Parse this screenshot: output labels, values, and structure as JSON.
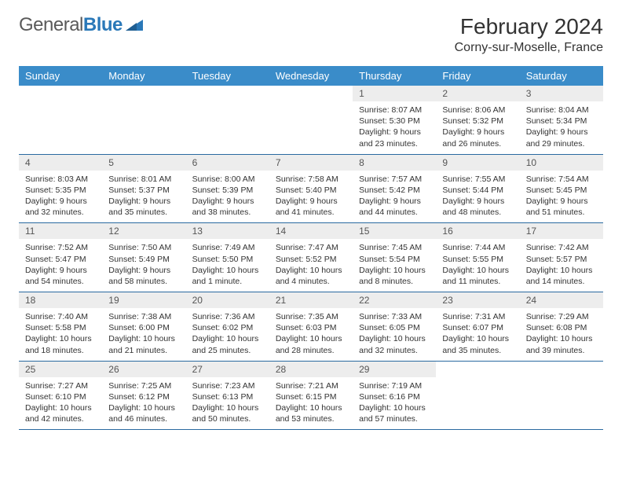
{
  "brand": {
    "part1": "General",
    "part2": "Blue"
  },
  "title": "February 2024",
  "location": "Corny-sur-Moselle, France",
  "colors": {
    "header_bg": "#3a8cc9",
    "header_text": "#ffffff",
    "daynum_bg": "#ededed",
    "row_border": "#2a6aa0",
    "logo_gray": "#5a5a5a",
    "logo_blue": "#2a78b8"
  },
  "weekdays": [
    "Sunday",
    "Monday",
    "Tuesday",
    "Wednesday",
    "Thursday",
    "Friday",
    "Saturday"
  ],
  "weeks": [
    [
      null,
      null,
      null,
      null,
      {
        "n": "1",
        "sr": "Sunrise: 8:07 AM",
        "ss": "Sunset: 5:30 PM",
        "d1": "Daylight: 9 hours",
        "d2": "and 23 minutes."
      },
      {
        "n": "2",
        "sr": "Sunrise: 8:06 AM",
        "ss": "Sunset: 5:32 PM",
        "d1": "Daylight: 9 hours",
        "d2": "and 26 minutes."
      },
      {
        "n": "3",
        "sr": "Sunrise: 8:04 AM",
        "ss": "Sunset: 5:34 PM",
        "d1": "Daylight: 9 hours",
        "d2": "and 29 minutes."
      }
    ],
    [
      {
        "n": "4",
        "sr": "Sunrise: 8:03 AM",
        "ss": "Sunset: 5:35 PM",
        "d1": "Daylight: 9 hours",
        "d2": "and 32 minutes."
      },
      {
        "n": "5",
        "sr": "Sunrise: 8:01 AM",
        "ss": "Sunset: 5:37 PM",
        "d1": "Daylight: 9 hours",
        "d2": "and 35 minutes."
      },
      {
        "n": "6",
        "sr": "Sunrise: 8:00 AM",
        "ss": "Sunset: 5:39 PM",
        "d1": "Daylight: 9 hours",
        "d2": "and 38 minutes."
      },
      {
        "n": "7",
        "sr": "Sunrise: 7:58 AM",
        "ss": "Sunset: 5:40 PM",
        "d1": "Daylight: 9 hours",
        "d2": "and 41 minutes."
      },
      {
        "n": "8",
        "sr": "Sunrise: 7:57 AM",
        "ss": "Sunset: 5:42 PM",
        "d1": "Daylight: 9 hours",
        "d2": "and 44 minutes."
      },
      {
        "n": "9",
        "sr": "Sunrise: 7:55 AM",
        "ss": "Sunset: 5:44 PM",
        "d1": "Daylight: 9 hours",
        "d2": "and 48 minutes."
      },
      {
        "n": "10",
        "sr": "Sunrise: 7:54 AM",
        "ss": "Sunset: 5:45 PM",
        "d1": "Daylight: 9 hours",
        "d2": "and 51 minutes."
      }
    ],
    [
      {
        "n": "11",
        "sr": "Sunrise: 7:52 AM",
        "ss": "Sunset: 5:47 PM",
        "d1": "Daylight: 9 hours",
        "d2": "and 54 minutes."
      },
      {
        "n": "12",
        "sr": "Sunrise: 7:50 AM",
        "ss": "Sunset: 5:49 PM",
        "d1": "Daylight: 9 hours",
        "d2": "and 58 minutes."
      },
      {
        "n": "13",
        "sr": "Sunrise: 7:49 AM",
        "ss": "Sunset: 5:50 PM",
        "d1": "Daylight: 10 hours",
        "d2": "and 1 minute."
      },
      {
        "n": "14",
        "sr": "Sunrise: 7:47 AM",
        "ss": "Sunset: 5:52 PM",
        "d1": "Daylight: 10 hours",
        "d2": "and 4 minutes."
      },
      {
        "n": "15",
        "sr": "Sunrise: 7:45 AM",
        "ss": "Sunset: 5:54 PM",
        "d1": "Daylight: 10 hours",
        "d2": "and 8 minutes."
      },
      {
        "n": "16",
        "sr": "Sunrise: 7:44 AM",
        "ss": "Sunset: 5:55 PM",
        "d1": "Daylight: 10 hours",
        "d2": "and 11 minutes."
      },
      {
        "n": "17",
        "sr": "Sunrise: 7:42 AM",
        "ss": "Sunset: 5:57 PM",
        "d1": "Daylight: 10 hours",
        "d2": "and 14 minutes."
      }
    ],
    [
      {
        "n": "18",
        "sr": "Sunrise: 7:40 AM",
        "ss": "Sunset: 5:58 PM",
        "d1": "Daylight: 10 hours",
        "d2": "and 18 minutes."
      },
      {
        "n": "19",
        "sr": "Sunrise: 7:38 AM",
        "ss": "Sunset: 6:00 PM",
        "d1": "Daylight: 10 hours",
        "d2": "and 21 minutes."
      },
      {
        "n": "20",
        "sr": "Sunrise: 7:36 AM",
        "ss": "Sunset: 6:02 PM",
        "d1": "Daylight: 10 hours",
        "d2": "and 25 minutes."
      },
      {
        "n": "21",
        "sr": "Sunrise: 7:35 AM",
        "ss": "Sunset: 6:03 PM",
        "d1": "Daylight: 10 hours",
        "d2": "and 28 minutes."
      },
      {
        "n": "22",
        "sr": "Sunrise: 7:33 AM",
        "ss": "Sunset: 6:05 PM",
        "d1": "Daylight: 10 hours",
        "d2": "and 32 minutes."
      },
      {
        "n": "23",
        "sr": "Sunrise: 7:31 AM",
        "ss": "Sunset: 6:07 PM",
        "d1": "Daylight: 10 hours",
        "d2": "and 35 minutes."
      },
      {
        "n": "24",
        "sr": "Sunrise: 7:29 AM",
        "ss": "Sunset: 6:08 PM",
        "d1": "Daylight: 10 hours",
        "d2": "and 39 minutes."
      }
    ],
    [
      {
        "n": "25",
        "sr": "Sunrise: 7:27 AM",
        "ss": "Sunset: 6:10 PM",
        "d1": "Daylight: 10 hours",
        "d2": "and 42 minutes."
      },
      {
        "n": "26",
        "sr": "Sunrise: 7:25 AM",
        "ss": "Sunset: 6:12 PM",
        "d1": "Daylight: 10 hours",
        "d2": "and 46 minutes."
      },
      {
        "n": "27",
        "sr": "Sunrise: 7:23 AM",
        "ss": "Sunset: 6:13 PM",
        "d1": "Daylight: 10 hours",
        "d2": "and 50 minutes."
      },
      {
        "n": "28",
        "sr": "Sunrise: 7:21 AM",
        "ss": "Sunset: 6:15 PM",
        "d1": "Daylight: 10 hours",
        "d2": "and 53 minutes."
      },
      {
        "n": "29",
        "sr": "Sunrise: 7:19 AM",
        "ss": "Sunset: 6:16 PM",
        "d1": "Daylight: 10 hours",
        "d2": "and 57 minutes."
      },
      null,
      null
    ]
  ]
}
